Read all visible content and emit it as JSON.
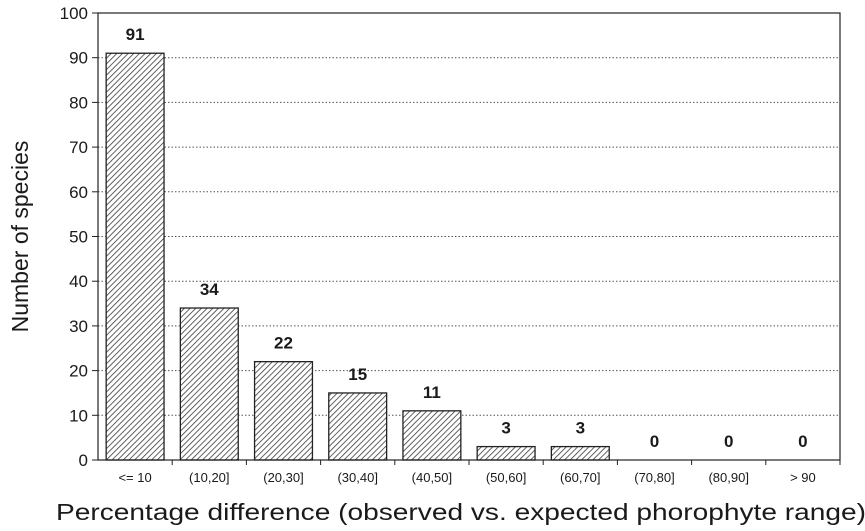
{
  "chart_data": {
    "type": "bar",
    "title": "",
    "xlabel": "Percentage difference (observed vs. expected phorophyte range)",
    "ylabel": "Number of species",
    "categories": [
      "<= 10",
      "(10,20]",
      "(20,30]",
      "(30,40]",
      "(40,50]",
      "(50,60]",
      "(60,70]",
      "(70,80]",
      "(80,90]",
      "> 90"
    ],
    "values": [
      91,
      34,
      22,
      15,
      11,
      3,
      3,
      0,
      0,
      0
    ],
    "data_labels": [
      "91",
      "34",
      "22",
      "15",
      "11",
      "3",
      "3",
      "0",
      "0",
      "0"
    ],
    "ylim": [
      0,
      100
    ],
    "yticks": [
      "0",
      "10",
      "20",
      "30",
      "40",
      "50",
      "60",
      "70",
      "80",
      "90",
      "100"
    ],
    "grid": "horizontal dotted",
    "bar_fill": "diagonal hatch",
    "colors": {
      "bar_stroke": "#222222",
      "hatch": "#3a3a3a",
      "grid": "#555555",
      "text": "#1a1a1a"
    }
  }
}
